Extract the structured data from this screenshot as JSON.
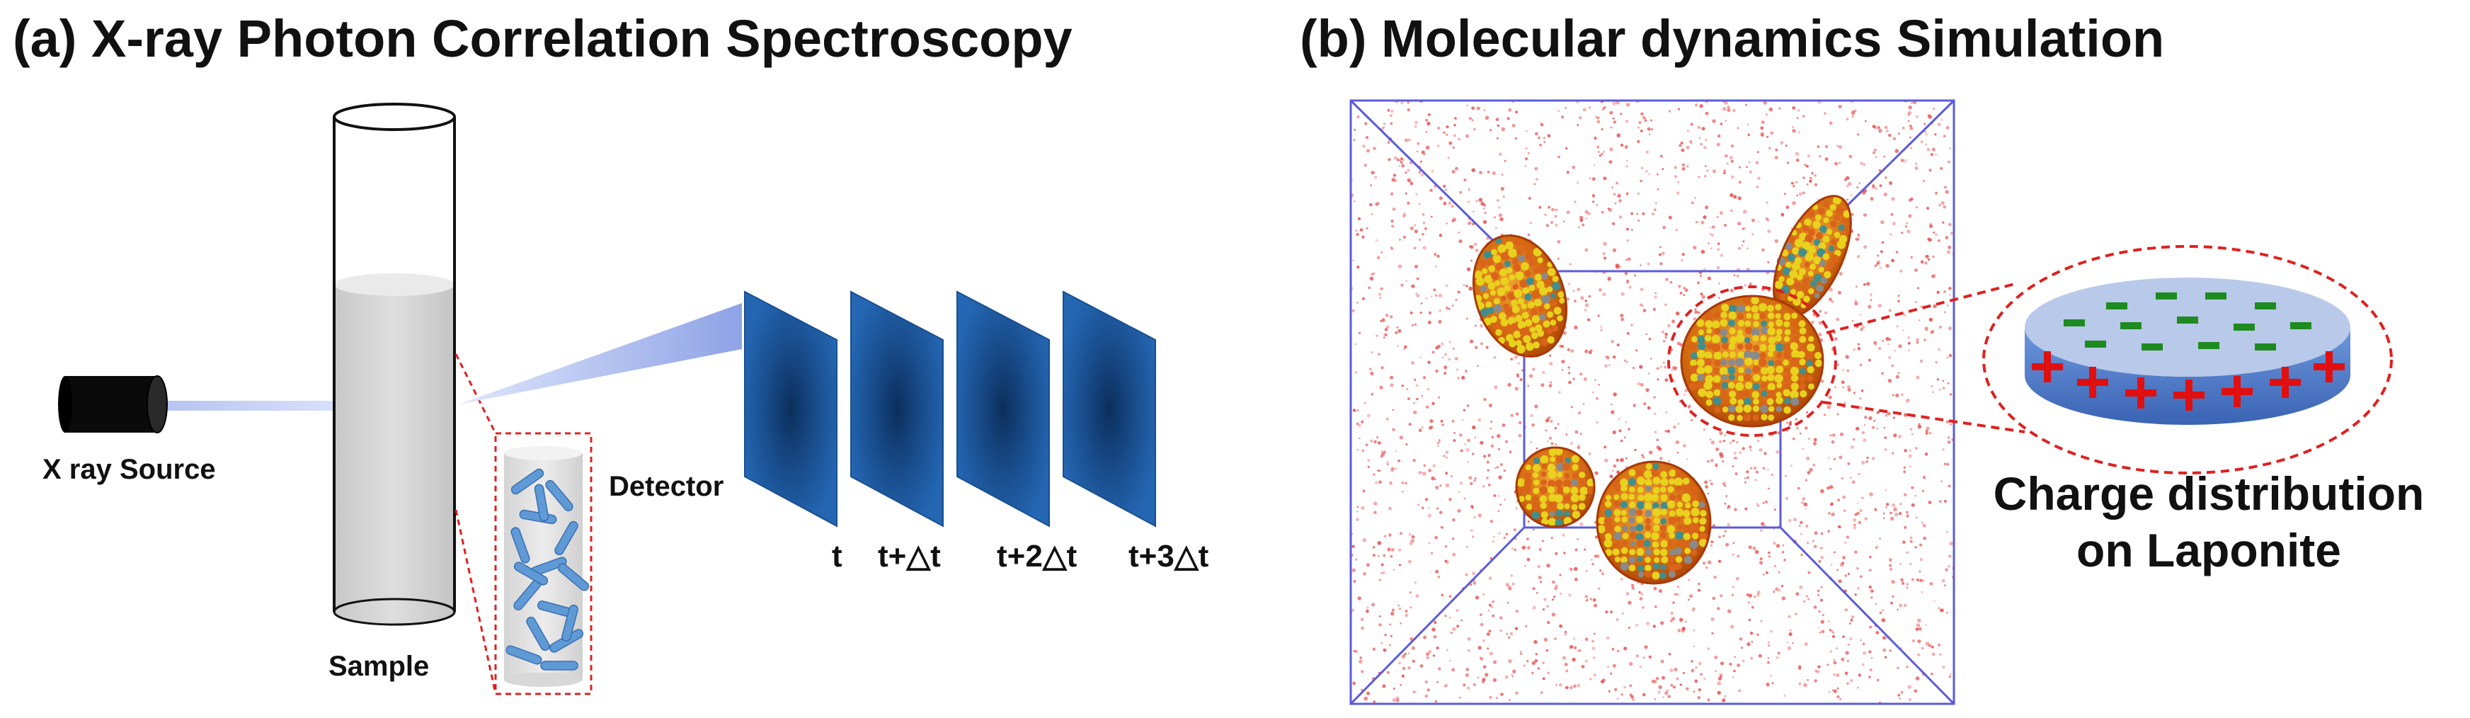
{
  "panel_a": {
    "title": "(a) X-ray Photon Correlation Spectroscopy",
    "source_label": "X ray Source",
    "sample_label": "Sample",
    "detector_label": "Detector",
    "frames": [
      "t",
      "t+△t",
      "t+2△t",
      "t+3△t"
    ]
  },
  "panel_b": {
    "title": "(b) Molecular dynamics Simulation",
    "charge_title_line1": "Charge distribution",
    "charge_title_line2": "on Laponite",
    "positive_symbol": "+",
    "negative_symbol": "−"
  },
  "colors": {
    "detector_blue": "#1f5fa8",
    "detector_dark": "#0d3566",
    "beam_blue": "#a8b8ee",
    "box_edge": "#5b5bdc",
    "water_red": "#e84a4a",
    "particle_orange": "#e07a1a",
    "particle_yellow": "#e8d21e",
    "dashed_red": "#e02020",
    "disk_top": "#b9c9ea",
    "disk_side": "#4a78c8",
    "plus_red": "#e01010",
    "minus_green": "#1f8a1f",
    "clay_blue": "#5f9ad6"
  }
}
